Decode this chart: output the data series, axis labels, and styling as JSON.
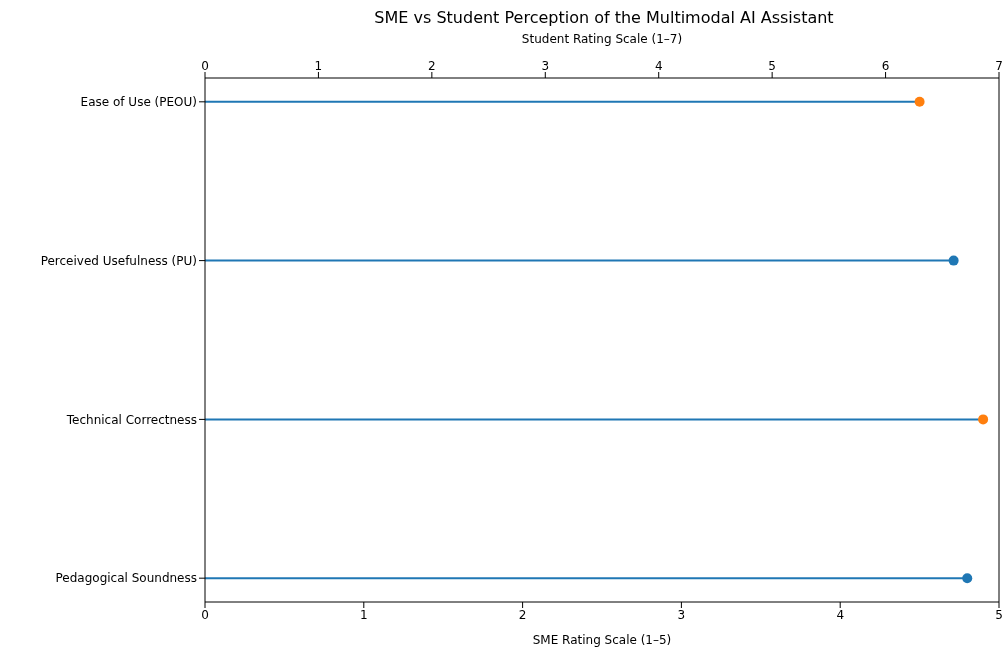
{
  "chart_data": {
    "type": "lollipop",
    "title": "SME vs Student Perception of the Multimodal AI Assistant",
    "xlabel": "SME Rating Scale (1–5)",
    "x2label": "Student Rating Scale (1–7)",
    "orientation": "horizontal",
    "categories": [
      "Ease of Use (PEOU)",
      "Perceived Usefulness (PU)",
      "Technical Correctness",
      "Pedagogical Soundness"
    ],
    "xlim": [
      0,
      5
    ],
    "xticks": [
      0,
      1,
      2,
      3,
      4,
      5
    ],
    "x2lim": [
      0,
      7
    ],
    "x2ticks": [
      0,
      1,
      2,
      3,
      4,
      5,
      6,
      7
    ],
    "marker": "circle",
    "series": [
      {
        "axis": "x2",
        "color": "#1f77b4",
        "colors": [
          "#ff7f0e",
          "#1f77b4",
          null,
          null
        ],
        "values": [
          6.3,
          6.6,
          null,
          null
        ]
      },
      {
        "color": "#1f77b4",
        "colors": [
          null,
          null,
          "#ff7f0e",
          "#1f77b4"
        ],
        "values": [
          null,
          null,
          4.9,
          4.8
        ]
      }
    ]
  }
}
